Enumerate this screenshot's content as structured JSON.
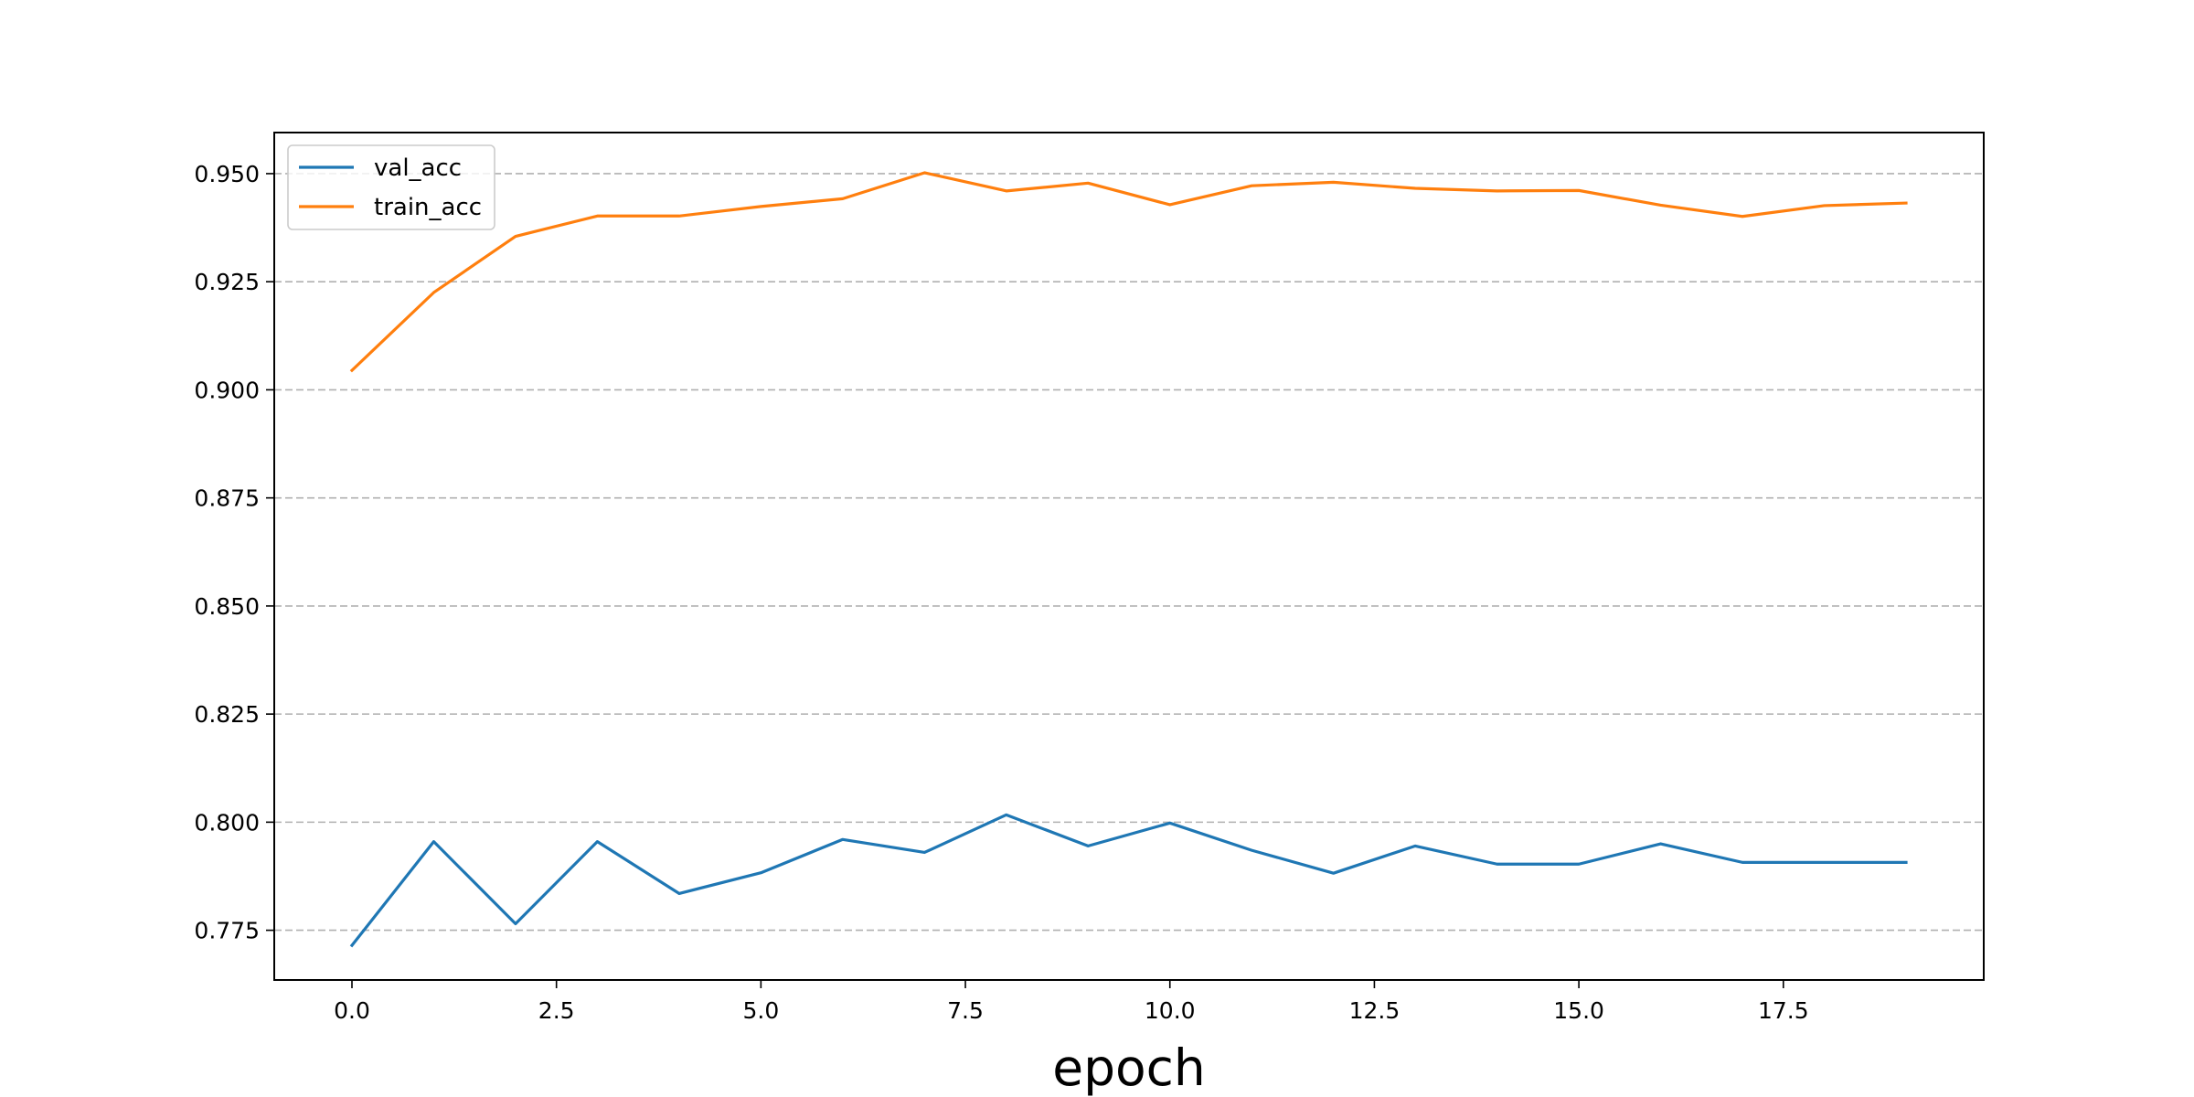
{
  "chart_data": {
    "type": "line",
    "title": "",
    "xlabel": "epoch",
    "ylabel": "",
    "xlim": [
      -0.95,
      19.95
    ],
    "ylim": [
      0.7635,
      0.9595
    ],
    "xticks": [
      "0.0",
      "2.5",
      "5.0",
      "7.5",
      "10.0",
      "12.5",
      "15.0",
      "17.5"
    ],
    "yticks": [
      "0.775",
      "0.800",
      "0.825",
      "0.850",
      "0.875",
      "0.900",
      "0.925",
      "0.950"
    ],
    "grid": "horizontal dashed",
    "legend_position": "top-left",
    "x": [
      0,
      1,
      2,
      3,
      4,
      5,
      6,
      7,
      8,
      9,
      10,
      11,
      12,
      13,
      14,
      15,
      16,
      17,
      18,
      19
    ],
    "series": [
      {
        "name": "val_acc",
        "color": "#1f77b4",
        "values": [
          0.7715,
          0.7955,
          0.7765,
          0.7955,
          0.7835,
          0.7883,
          0.796,
          0.793,
          0.8017,
          0.7945,
          0.7998,
          0.7935,
          0.7882,
          0.7945,
          0.7903,
          0.7903,
          0.795,
          0.7907,
          0.7907,
          0.7907
        ]
      },
      {
        "name": "train_acc",
        "color": "#ff7f0e",
        "values": [
          0.9045,
          0.9225,
          0.9355,
          0.9402,
          0.9402,
          0.9424,
          0.9442,
          0.9502,
          0.946,
          0.9478,
          0.9428,
          0.9472,
          0.948,
          0.9466,
          0.946,
          0.9461,
          0.9427,
          0.9401,
          0.9426,
          0.9432
        ]
      }
    ]
  }
}
